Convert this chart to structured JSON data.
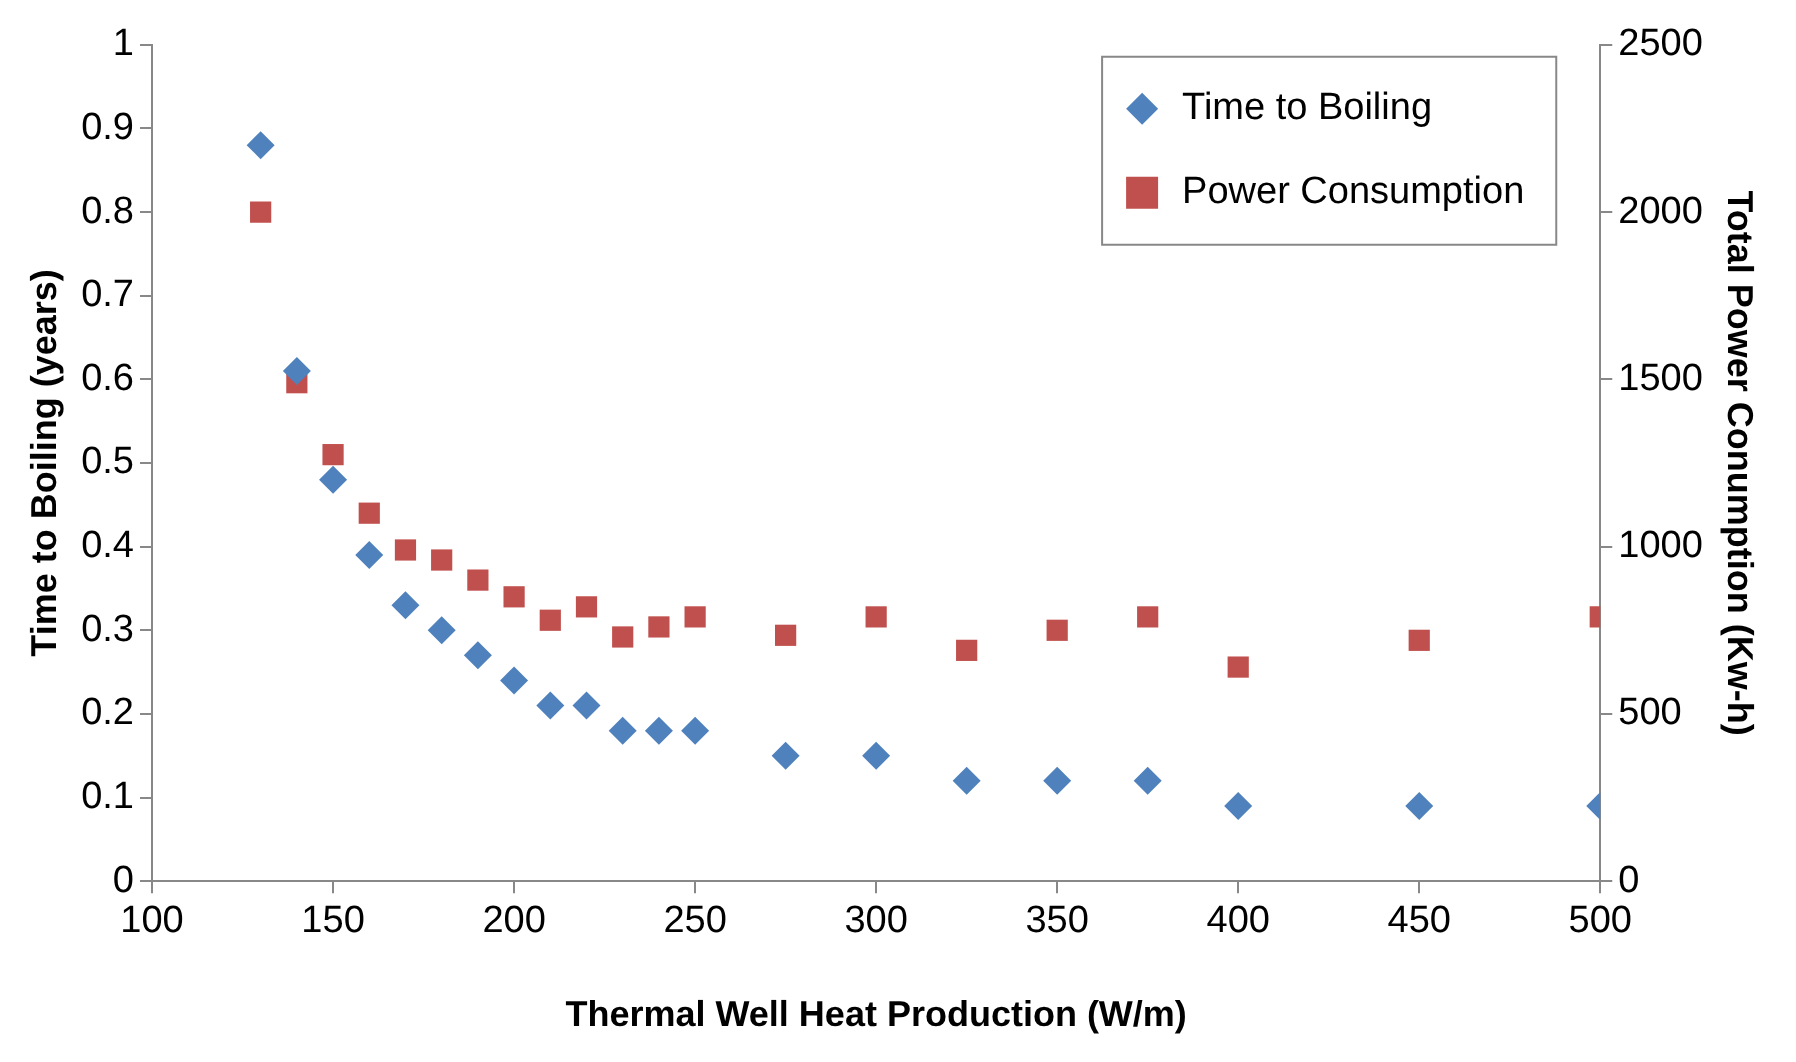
{
  "chart_data": {
    "type": "scatter",
    "xlabel": "Thermal Well Heat Production (W/m)",
    "ylabel": "Time to Boiling (years)",
    "y2label": "Total Power Conumption (Kw-h)",
    "x": [
      130,
      140,
      150,
      160,
      170,
      180,
      190,
      200,
      210,
      220,
      230,
      240,
      250,
      275,
      300,
      325,
      350,
      375,
      400,
      450,
      500
    ],
    "series": [
      {
        "name": "Time to Boiling",
        "color": "#4f81bd",
        "marker": "diamond",
        "values": [
          0.88,
          0.61,
          0.48,
          0.39,
          0.33,
          0.3,
          0.27,
          0.24,
          0.21,
          0.21,
          0.18,
          0.18,
          0.18,
          0.15,
          0.15,
          0.12,
          0.12,
          0.12,
          0.09,
          0.09,
          0.09
        ]
      },
      {
        "name": "Power Consumption",
        "color": "#c0504d",
        "marker": "square",
        "axis": "y2",
        "values": [
          2000,
          1490,
          1275,
          1100,
          990,
          960,
          900,
          850,
          780,
          820,
          730,
          760,
          790,
          735,
          790,
          690,
          750,
          790,
          640,
          720,
          790
        ]
      }
    ],
    "xlim": [
      100,
      500
    ],
    "xticks": [
      100,
      150,
      200,
      250,
      300,
      350,
      400,
      450,
      500
    ],
    "ylim": [
      0,
      1
    ],
    "yticks": [
      0,
      0.1,
      0.2,
      0.3,
      0.4,
      0.5,
      0.6,
      0.7,
      0.8,
      0.9,
      1
    ],
    "y2lim": [
      0,
      2500
    ],
    "y2ticks": [
      0,
      500,
      1000,
      1500,
      2000,
      2500
    ],
    "grid": false,
    "legend": "top right"
  }
}
